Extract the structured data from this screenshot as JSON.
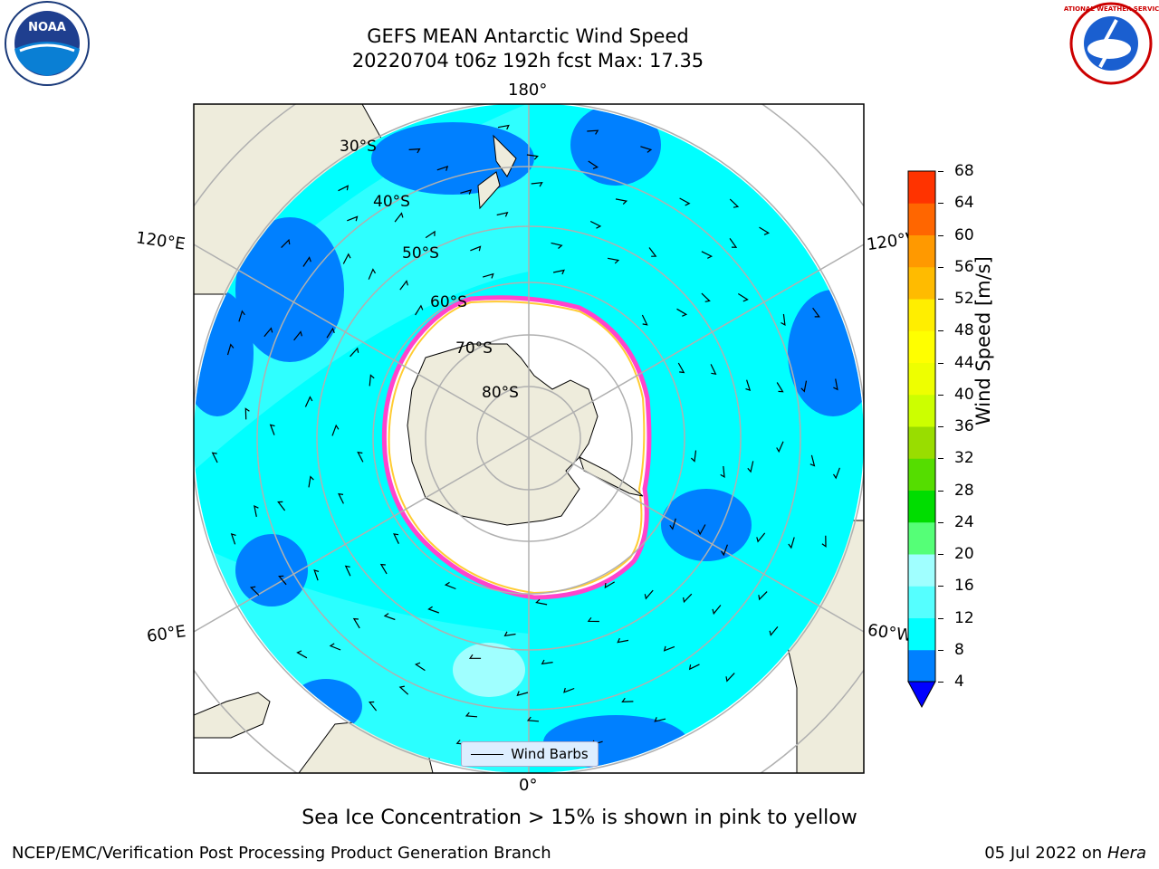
{
  "header": {
    "title_line1": "GEFS MEAN Antarctic Wind Speed",
    "title_line2": "20220704 t06z 192h fcst   Max: 17.35"
  },
  "logos": {
    "left": {
      "name": "noaa-logo",
      "text": "NOAA"
    },
    "right": {
      "name": "national-weather-service-logo",
      "text": "NATIONAL WEATHER SERVICE"
    }
  },
  "map": {
    "projection": "south-polar-stereographic",
    "longitude_labels": {
      "top": "180°",
      "bottom": "0°",
      "upper_left": "120°E",
      "upper_right": "120°W",
      "lower_left": "60°E",
      "lower_right": "60°W"
    },
    "latitude_labels": [
      "30°S",
      "40°S",
      "50°S",
      "60°S",
      "70°S",
      "80°S"
    ],
    "colors": {
      "land": "#eeecdc",
      "ocean_blue": "#0080ff",
      "ocean_cyan": "#00ffff",
      "ocean_light": "#55ffff",
      "sea_ice_edge": "#ff44cc",
      "sea_ice_inner": "#ffcc33",
      "ice_shelf": "#ffffff",
      "grid": "#b0b0b0"
    }
  },
  "legend": {
    "label": "Wind Barbs"
  },
  "colorbar": {
    "label": "Wind Speed [m/s]",
    "ticks": [
      "4",
      "8",
      "12",
      "16",
      "20",
      "24",
      "28",
      "32",
      "36",
      "40",
      "44",
      "48",
      "52",
      "56",
      "60",
      "64",
      "68"
    ],
    "colors": [
      "#0080ff",
      "#00ffff",
      "#55ffff",
      "#a0ffff",
      "#55ff77",
      "#00dd00",
      "#55dd00",
      "#99dd00",
      "#ccff00",
      "#eeff00",
      "#ffff00",
      "#ffee00",
      "#ffbb00",
      "#ff9900",
      "#ff6600",
      "#ff3300",
      "#ff0000"
    ],
    "under_color": "#0000ff"
  },
  "caption": "Sea Ice Concentration > 15% is shown in pink to yellow",
  "footer": {
    "left": "NCEP/EMC/Verification Post Processing Product Generation Branch",
    "right_prefix": "05 Jul 2022 on ",
    "right_machine": "Hera"
  }
}
